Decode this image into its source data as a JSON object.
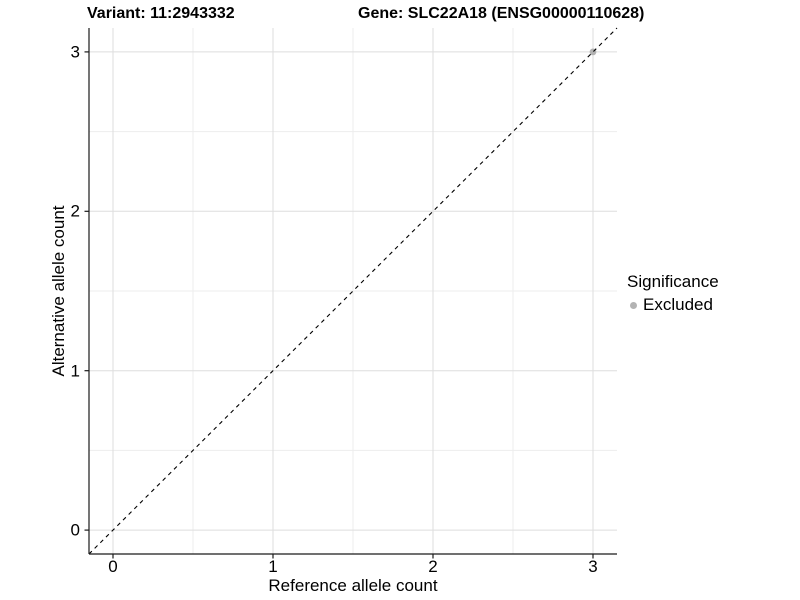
{
  "titles": {
    "variant": "Variant: 11:2943332",
    "gene": "Gene: SLC22A18 (ENSG00000110628)"
  },
  "axes": {
    "x_label": "Reference allele count",
    "y_label": "Alternative allele count"
  },
  "legend": {
    "title": "Significance",
    "items": [
      {
        "label": "Excluded",
        "color": "#b3b3b3"
      }
    ]
  },
  "colors": {
    "background": "#ffffff",
    "major_grid": "#dedede",
    "minor_grid": "#ededed",
    "axis_line": "#1a1a1a",
    "tick_mark": "#1a1a1a",
    "reference_line": "#000000",
    "point": "#b3b3b3",
    "text": "#000000"
  },
  "chart_data": {
    "type": "scatter",
    "title": "Variant: 11:2943332  |  Gene: SLC22A18 (ENSG00000110628)",
    "xlabel": "Reference allele count",
    "ylabel": "Alternative allele count",
    "xlim": [
      -0.15,
      3.15
    ],
    "ylim": [
      -0.15,
      3.15
    ],
    "x_ticks": [
      0,
      1,
      2,
      3
    ],
    "y_ticks": [
      0,
      1,
      2,
      3
    ],
    "x_minor_ticks": [
      0.5,
      1.5,
      2.5
    ],
    "y_minor_ticks": [
      0.5,
      1.5,
      2.5
    ],
    "grid": true,
    "legend_position": "right",
    "reference_line": {
      "kind": "identity",
      "slope": 1,
      "intercept": 0,
      "style": "dashed"
    },
    "series": [
      {
        "name": "Excluded",
        "color": "#b3b3b3",
        "points": [
          [
            3,
            3
          ]
        ]
      }
    ]
  }
}
